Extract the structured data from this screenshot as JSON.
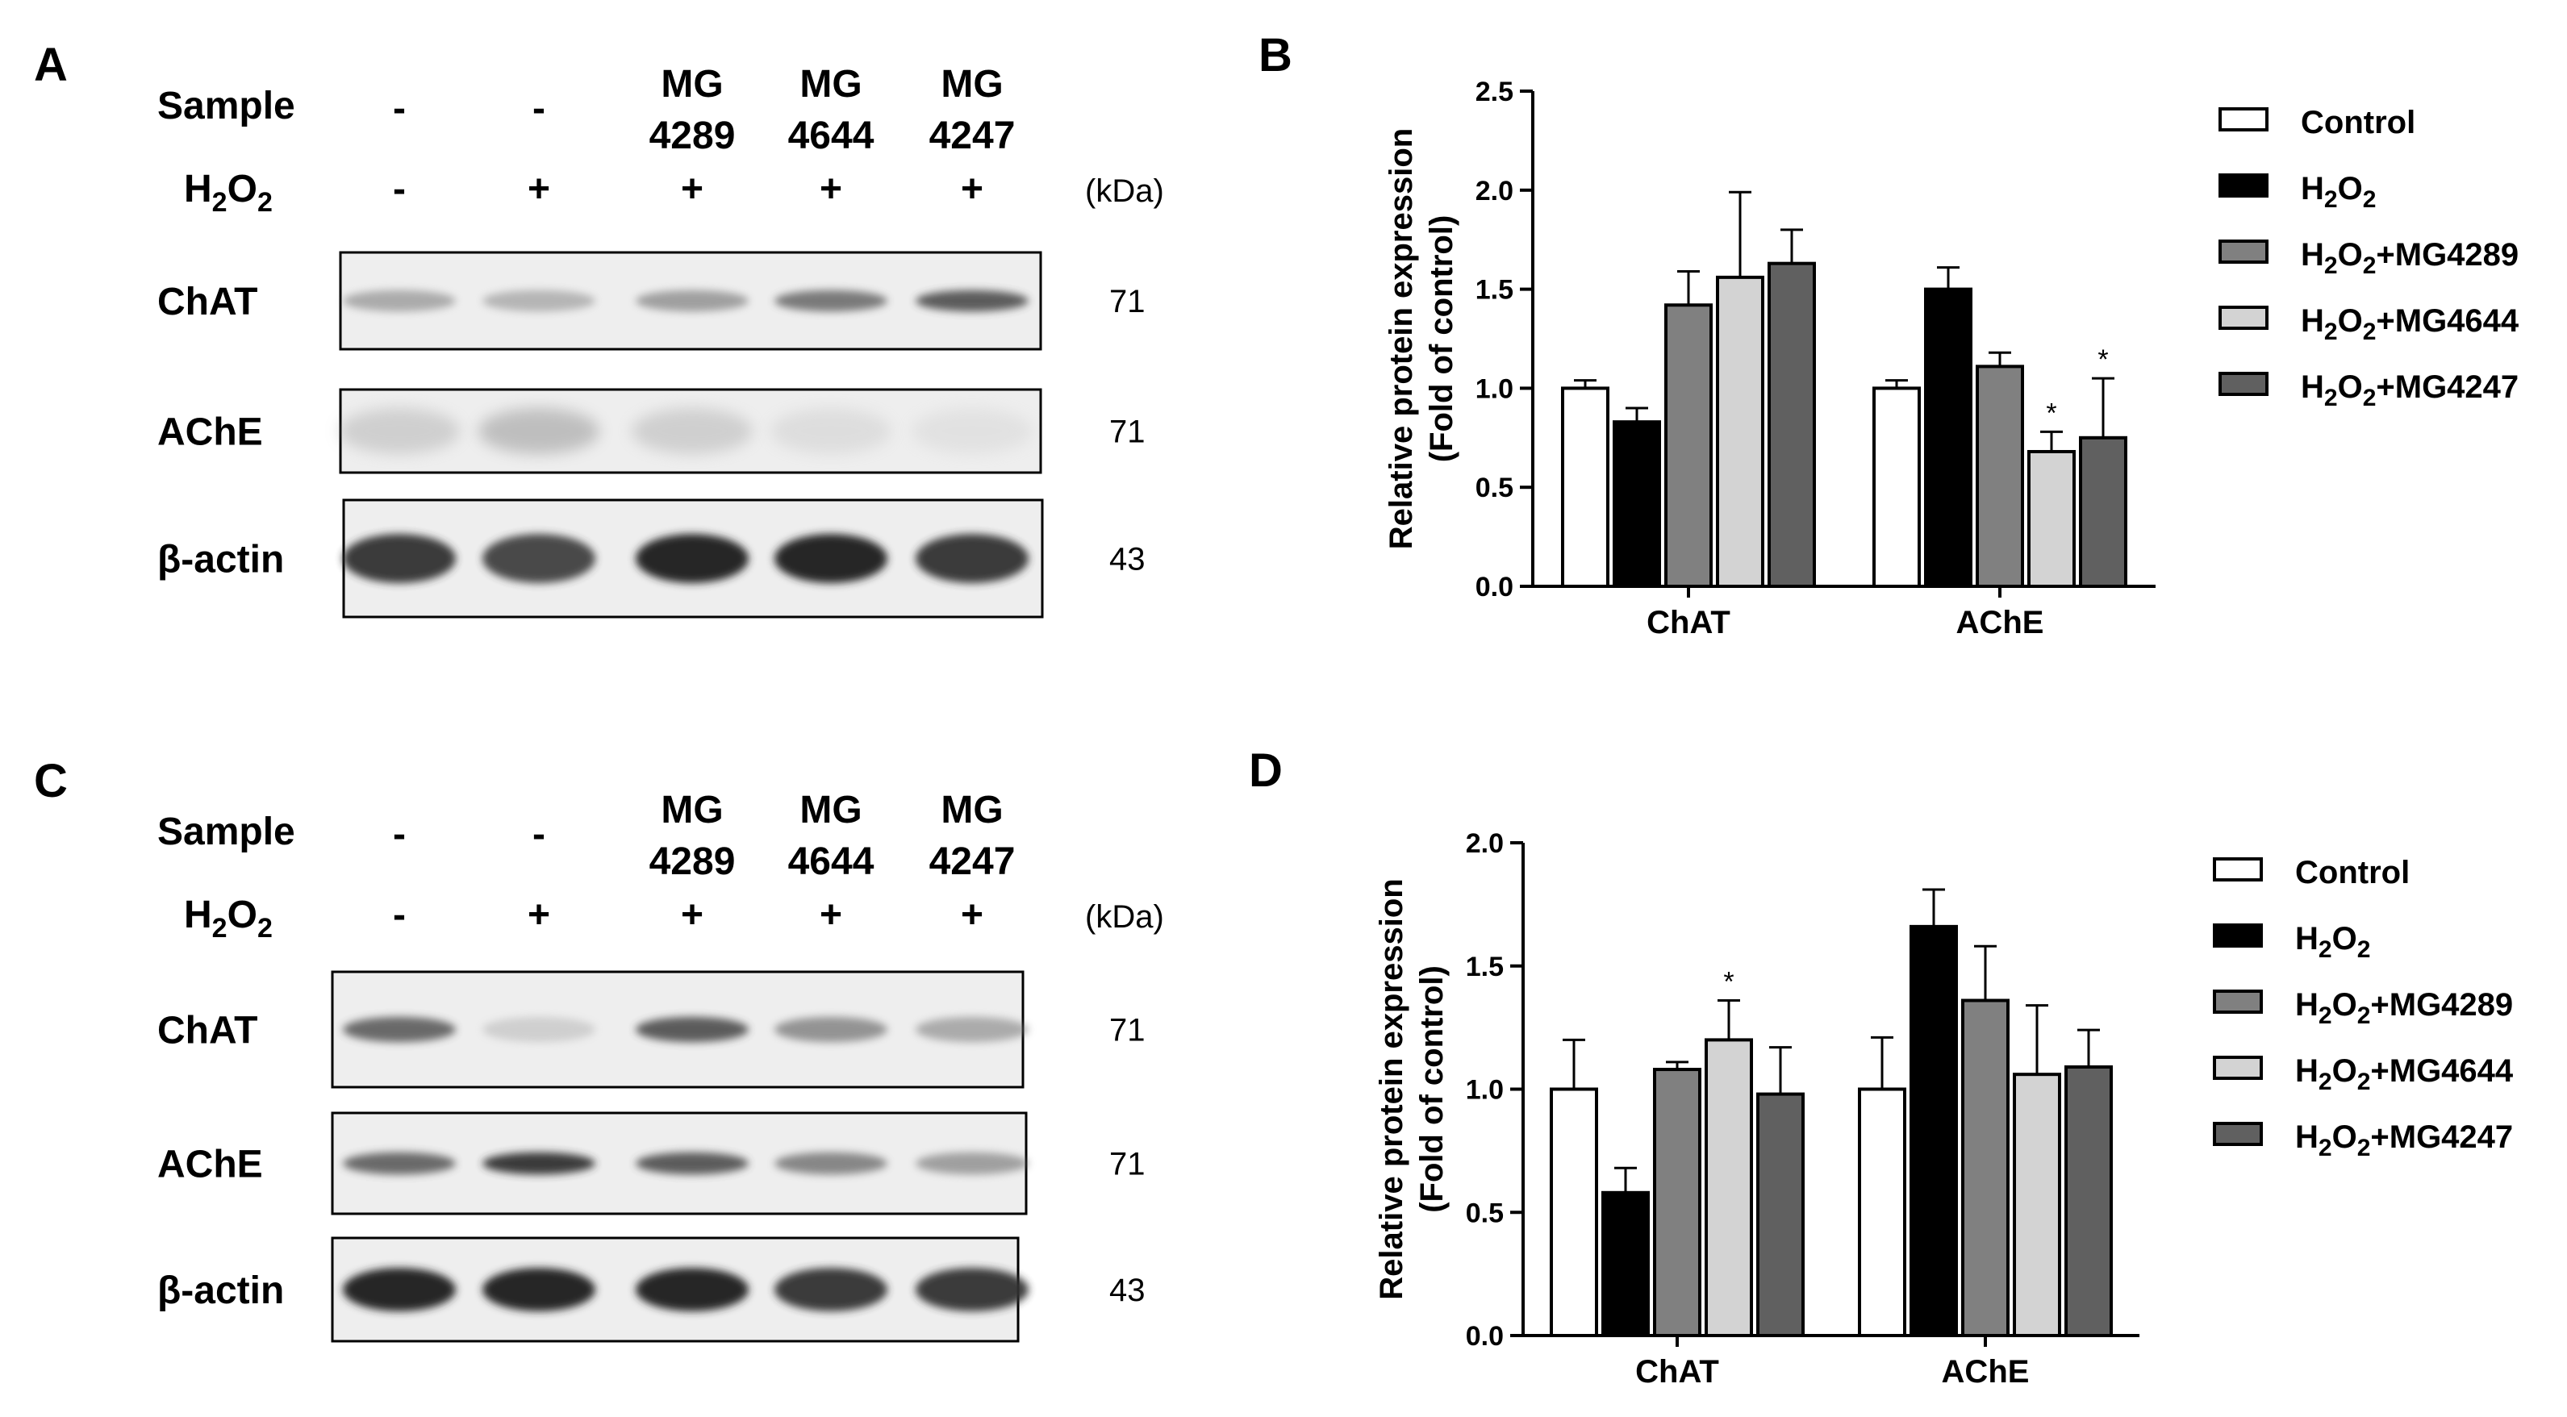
{
  "panels": {
    "A": "A",
    "B": "B",
    "C": "C",
    "D": "D"
  },
  "blot_header": {
    "sample_label": "Sample",
    "h2o2_main": "H",
    "h2o2_sub": "2",
    "h2o2_main2": "O",
    "h2o2_sub2": "2",
    "kda_label": "(kDa)",
    "lanes": [
      {
        "sample_line1": "-",
        "sample_line2": "",
        "h2o2": "-"
      },
      {
        "sample_line1": "-",
        "sample_line2": "",
        "h2o2": "+"
      },
      {
        "sample_line1": "MG",
        "sample_line2": "4289",
        "h2o2": "+"
      },
      {
        "sample_line1": "MG",
        "sample_line2": "4644",
        "h2o2": "+"
      },
      {
        "sample_line1": "MG",
        "sample_line2": "4247",
        "h2o2": "+"
      }
    ]
  },
  "blot_rows": [
    {
      "label": "ChAT",
      "kda": "71"
    },
    {
      "label": "AChE",
      "kda": "71"
    },
    {
      "label": "β-actin",
      "kda": "43"
    }
  ],
  "legend": {
    "entries": [
      {
        "prefix": "Control",
        "subscript": "",
        "suffix": "",
        "color": "#ffffff"
      },
      {
        "prefix": "H",
        "subscript": "2",
        "mid": "O",
        "subscript2": "2",
        "suffix": "",
        "color": "#000000"
      },
      {
        "prefix": "H",
        "subscript": "2",
        "mid": "O",
        "subscript2": "2",
        "suffix": "+MG4289",
        "color": "#808080"
      },
      {
        "prefix": "H",
        "subscript": "2",
        "mid": "O",
        "subscript2": "2",
        "suffix": "+MG4644",
        "color": "#d3d3d3"
      },
      {
        "prefix": "H",
        "subscript": "2",
        "mid": "O",
        "subscript2": "2",
        "suffix": "+MG4247",
        "color": "#606060"
      }
    ]
  },
  "chart_data": [
    {
      "panel": "B",
      "type": "bar",
      "ylabel_line1": "Relative protein expression",
      "ylabel_line2": "(Fold of control)",
      "categories": [
        "ChAT",
        "AChE"
      ],
      "ylim": [
        0,
        2.5
      ],
      "yticks": [
        "0.0",
        "0.5",
        "1.0",
        "1.5",
        "2.0",
        "2.5"
      ],
      "series": [
        {
          "name": "Control",
          "color": "#ffffff",
          "values": [
            1.0,
            1.0
          ],
          "errors": [
            0.04,
            0.04
          ],
          "stars": [
            "",
            ""
          ]
        },
        {
          "name": "H2O2",
          "color": "#000000",
          "values": [
            0.83,
            1.5
          ],
          "errors": [
            0.07,
            0.11
          ],
          "stars": [
            "",
            ""
          ]
        },
        {
          "name": "H2O2+MG4289",
          "color": "#808080",
          "values": [
            1.42,
            1.11
          ],
          "errors": [
            0.17,
            0.07
          ],
          "stars": [
            "",
            ""
          ]
        },
        {
          "name": "H2O2+MG4644",
          "color": "#d3d3d3",
          "values": [
            1.56,
            0.68
          ],
          "errors": [
            0.43,
            0.1
          ],
          "stars": [
            "",
            "*"
          ]
        },
        {
          "name": "H2O2+MG4247",
          "color": "#606060",
          "values": [
            1.63,
            0.75
          ],
          "errors": [
            0.17,
            0.3
          ],
          "stars": [
            "",
            "*"
          ]
        }
      ]
    },
    {
      "panel": "D",
      "type": "bar",
      "ylabel_line1": "Relative protein expression",
      "ylabel_line2": "(Fold of control)",
      "categories": [
        "ChAT",
        "AChE"
      ],
      "ylim": [
        0,
        2.0
      ],
      "yticks": [
        "0.0",
        "0.5",
        "1.0",
        "1.5",
        "2.0"
      ],
      "series": [
        {
          "name": "Control",
          "color": "#ffffff",
          "values": [
            1.0,
            1.0
          ],
          "errors": [
            0.2,
            0.21
          ],
          "stars": [
            "",
            ""
          ]
        },
        {
          "name": "H2O2",
          "color": "#000000",
          "values": [
            0.58,
            1.66
          ],
          "errors": [
            0.1,
            0.15
          ],
          "stars": [
            "",
            ""
          ]
        },
        {
          "name": "H2O2+MG4289",
          "color": "#808080",
          "values": [
            1.08,
            1.36
          ],
          "errors": [
            0.03,
            0.22
          ],
          "stars": [
            "",
            ""
          ]
        },
        {
          "name": "H2O2+MG4644",
          "color": "#d3d3d3",
          "values": [
            1.2,
            1.06
          ],
          "errors": [
            0.16,
            0.28
          ],
          "stars": [
            "*",
            ""
          ]
        },
        {
          "name": "H2O2+MG4247",
          "color": "#606060",
          "values": [
            0.98,
            1.09
          ],
          "errors": [
            0.19,
            0.15
          ],
          "stars": [
            "",
            ""
          ]
        }
      ]
    }
  ]
}
